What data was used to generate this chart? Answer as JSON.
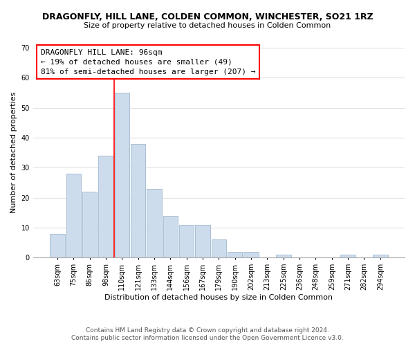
{
  "title": "DRAGONFLY, HILL LANE, COLDEN COMMON, WINCHESTER, SO21 1RZ",
  "subtitle": "Size of property relative to detached houses in Colden Common",
  "xlabel": "Distribution of detached houses by size in Colden Common",
  "ylabel": "Number of detached properties",
  "footnote1": "Contains HM Land Registry data © Crown copyright and database right 2024.",
  "footnote2": "Contains public sector information licensed under the Open Government Licence v3.0.",
  "bar_labels": [
    "63sqm",
    "75sqm",
    "86sqm",
    "98sqm",
    "110sqm",
    "121sqm",
    "133sqm",
    "144sqm",
    "156sqm",
    "167sqm",
    "179sqm",
    "190sqm",
    "202sqm",
    "213sqm",
    "225sqm",
    "236sqm",
    "248sqm",
    "259sqm",
    "271sqm",
    "282sqm",
    "294sqm"
  ],
  "bar_values": [
    8,
    28,
    22,
    34,
    55,
    38,
    23,
    14,
    11,
    11,
    6,
    2,
    2,
    0,
    1,
    0,
    0,
    0,
    1,
    0,
    1
  ],
  "bar_color": "#cddcec",
  "bar_edge_color": "#a8bfd4",
  "vline_color": "red",
  "vline_x_index": 3,
  "ylim": [
    0,
    70
  ],
  "yticks": [
    0,
    10,
    20,
    30,
    40,
    50,
    60,
    70
  ],
  "annotation_title": "DRAGONFLY HILL LANE: 96sqm",
  "annotation_line1": "← 19% of detached houses are smaller (49)",
  "annotation_line2": "81% of semi-detached houses are larger (207) →",
  "bg_color": "#ffffff",
  "grid_color": "#e0e0e0",
  "title_fontsize": 9,
  "subtitle_fontsize": 8,
  "axis_label_fontsize": 8,
  "tick_fontsize": 7,
  "annotation_fontsize": 8,
  "footnote_fontsize": 6.5
}
